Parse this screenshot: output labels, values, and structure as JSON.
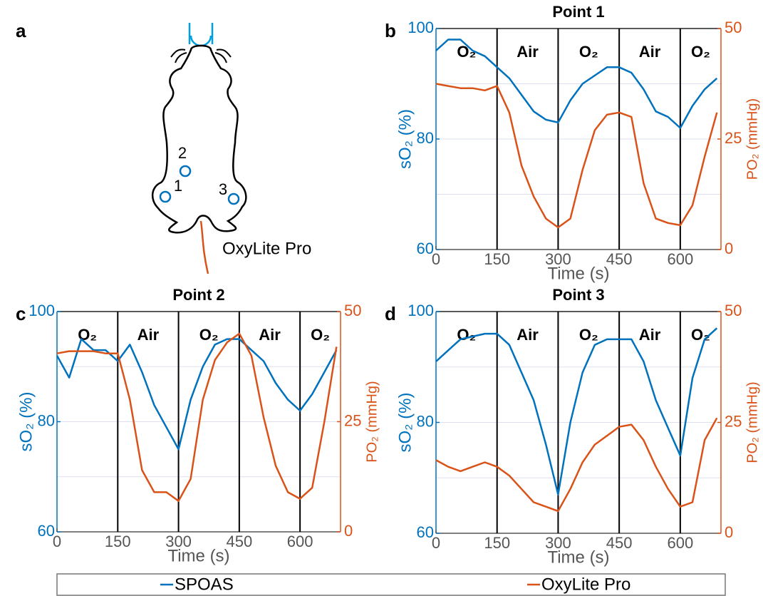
{
  "panel_labels": {
    "a": "a"
  },
  "diagram": {
    "labels": [
      "1",
      "2",
      "3"
    ],
    "probe": "OxyLite Pro"
  },
  "legend": [
    "SPOAS",
    "OxyLite Pro"
  ],
  "chart_data": [
    {
      "type": "line",
      "panel": "b",
      "title": "Point 1",
      "xlabel": "Time (s)",
      "ylabel": "sO₂ (%)",
      "y2label": "PO₂ (mmHg)",
      "x": [
        0,
        30,
        60,
        90,
        120,
        150,
        180,
        210,
        240,
        270,
        300,
        330,
        360,
        390,
        420,
        450,
        480,
        510,
        540,
        570,
        600,
        630,
        660,
        690
      ],
      "xlim": [
        0,
        700
      ],
      "xticks": [
        0,
        150,
        300,
        450,
        600
      ],
      "ylim": [
        60,
        100
      ],
      "yticks": [
        60,
        80,
        100
      ],
      "yminor": [
        70,
        90
      ],
      "y2lim": [
        0,
        50
      ],
      "y2ticks": [
        0,
        25,
        50
      ],
      "grid": true,
      "phase_lines": [
        150,
        300,
        450,
        600
      ],
      "phases": [
        "O₂",
        "Air",
        "O₂",
        "Air",
        "O₂"
      ],
      "series": [
        {
          "color": "#0072BD",
          "values": [
            96,
            98,
            98,
            96,
            95,
            93,
            91,
            88,
            85,
            83.5,
            83,
            87,
            90,
            91.5,
            93,
            93,
            92,
            89,
            85,
            84,
            82,
            86,
            89,
            91
          ]
        },
        {
          "color": "#D95319",
          "axis": "y2",
          "values": [
            37.5,
            37,
            36.5,
            36.5,
            36,
            37,
            31,
            19,
            12,
            7,
            5,
            7,
            18,
            27,
            30.5,
            31,
            30,
            15,
            7,
            6,
            5.5,
            10,
            21,
            31
          ]
        }
      ]
    },
    {
      "type": "line",
      "panel": "c",
      "title": "Point 2",
      "xlabel": "Time (s)",
      "ylabel": "sO₂ (%)",
      "y2label": "PO₂ (mmHg)",
      "x": [
        0,
        30,
        60,
        90,
        120,
        150,
        180,
        210,
        240,
        270,
        300,
        330,
        360,
        390,
        420,
        450,
        480,
        510,
        540,
        570,
        600,
        630,
        660,
        690
      ],
      "xlim": [
        0,
        700
      ],
      "xticks": [
        0,
        150,
        300,
        450,
        600
      ],
      "ylim": [
        60,
        100
      ],
      "yticks": [
        60,
        80,
        100
      ],
      "yminor": [
        70,
        90
      ],
      "y2lim": [
        0,
        50
      ],
      "y2ticks": [
        0,
        25,
        50
      ],
      "grid": true,
      "phase_lines": [
        150,
        300,
        450,
        600
      ],
      "phases": [
        "O₂",
        "Air",
        "O₂",
        "Air",
        "O₂"
      ],
      "series": [
        {
          "color": "#0072BD",
          "values": [
            92,
            88,
            95,
            93,
            93,
            91,
            94,
            89,
            83,
            79,
            75,
            84,
            90,
            94,
            95,
            95,
            93,
            91,
            87,
            84,
            82,
            85,
            89,
            93
          ]
        },
        {
          "color": "#D95319",
          "axis": "y2",
          "values": [
            40.5,
            41,
            41,
            41,
            40.5,
            40.5,
            30,
            14,
            9,
            9,
            7,
            12,
            30,
            39,
            43,
            45,
            40,
            26,
            15,
            9,
            7.5,
            10,
            25,
            42
          ]
        }
      ]
    },
    {
      "type": "line",
      "panel": "d",
      "title": "Point 3",
      "xlabel": "Time (s)",
      "ylabel": "sO₂ (%)",
      "y2label": "PO₂ (mmHg)",
      "x": [
        0,
        30,
        60,
        90,
        120,
        150,
        180,
        210,
        240,
        270,
        300,
        330,
        360,
        390,
        420,
        450,
        480,
        510,
        540,
        570,
        600,
        630,
        660,
        690
      ],
      "xlim": [
        0,
        700
      ],
      "xticks": [
        0,
        150,
        300,
        450,
        600
      ],
      "ylim": [
        60,
        100
      ],
      "yticks": [
        60,
        80,
        100
      ],
      "yminor": [
        70,
        90
      ],
      "y2lim": [
        0,
        50
      ],
      "y2ticks": [
        0,
        25,
        50
      ],
      "grid": true,
      "phase_lines": [
        150,
        300,
        450,
        600
      ],
      "phases": [
        "O₂",
        "Air",
        "O₂",
        "Air",
        "O₂"
      ],
      "series": [
        {
          "color": "#0072BD",
          "values": [
            91,
            93,
            95,
            95.5,
            96,
            96,
            94,
            89,
            84,
            76,
            67,
            80,
            89,
            94,
            95,
            95,
            95,
            91,
            84,
            79,
            74,
            88,
            95,
            97
          ]
        },
        {
          "color": "#D95319",
          "axis": "y2",
          "values": [
            16.5,
            15,
            14,
            15,
            16,
            15,
            13,
            10,
            7,
            6,
            5,
            10,
            16,
            20,
            22,
            24,
            24.5,
            21,
            15,
            10,
            6,
            7,
            21,
            26
          ]
        }
      ]
    }
  ]
}
